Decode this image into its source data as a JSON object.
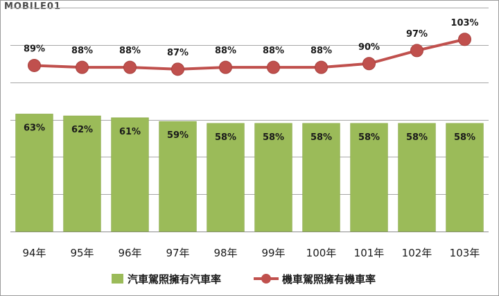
{
  "watermark": "MOBILE01",
  "chart_data": {
    "type": "bar",
    "categories": [
      "94年",
      "95年",
      "96年",
      "97年",
      "98年",
      "99年",
      "100年",
      "101年",
      "102年",
      "103年"
    ],
    "series": [
      {
        "name": "汽車駕照擁有汽車率",
        "type": "bar",
        "values": [
          63,
          62,
          61,
          59,
          58,
          58,
          58,
          58,
          58,
          58
        ],
        "labels": [
          "63%",
          "62%",
          "61%",
          "59%",
          "58%",
          "58%",
          "58%",
          "58%",
          "58%",
          "58%"
        ],
        "color": "#9bbb59"
      },
      {
        "name": "機車駕照擁有機車率",
        "type": "line",
        "values": [
          89,
          88,
          88,
          87,
          88,
          88,
          88,
          90,
          97,
          103
        ],
        "labels": [
          "89%",
          "88%",
          "88%",
          "87%",
          "88%",
          "88%",
          "88%",
          "90%",
          "97%",
          "103%"
        ],
        "color": "#c0504d"
      }
    ],
    "ylim": [
      0,
      120
    ],
    "grid": true,
    "legend": "bottom"
  }
}
